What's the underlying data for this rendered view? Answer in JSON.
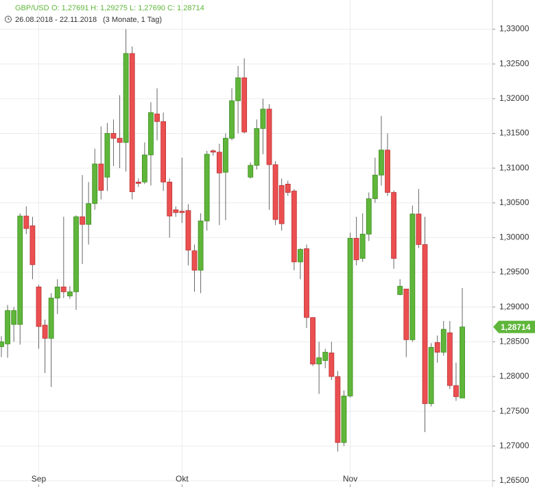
{
  "header": {
    "symbol": "GBP/USD",
    "ohlc": [
      "O: 1,27691",
      "H: 1,29275",
      "L: 1,27690",
      "C: 1,28714"
    ],
    "range": "26.08.2018 - 22.11.2018",
    "span": "(3 Monate, 1 Tag)"
  },
  "chart_data": {
    "type": "candlestick",
    "categories": [
      null,
      null,
      null,
      null,
      null,
      null,
      "Sep",
      null,
      null,
      null,
      null,
      null,
      null,
      null,
      null,
      null,
      null,
      null,
      null,
      null,
      null,
      null,
      null,
      null,
      null,
      null,
      null,
      null,
      null,
      "Okt",
      null,
      null,
      null,
      null,
      null,
      null,
      null,
      null,
      null,
      null,
      null,
      null,
      null,
      null,
      null,
      null,
      null,
      null,
      null,
      null,
      null,
      null,
      null,
      null,
      null,
      null,
      "Nov",
      null,
      null,
      null,
      null,
      null,
      null,
      null,
      null,
      null,
      null,
      null,
      null,
      null,
      null,
      null,
      null,
      null,
      null
    ],
    "open": [
      1.2843,
      1.2847,
      1.2875,
      1.2875,
      1.3031,
      1.3017,
      1.2929,
      1.2874,
      1.2855,
      1.2913,
      1.2929,
      1.2916,
      1.2922,
      1.303,
      1.3019,
      1.3049,
      1.3106,
      1.3087,
      1.315,
      1.3143,
      1.3137,
      1.3265,
      1.308,
      1.308,
      1.3119,
      1.3178,
      1.3167,
      1.308,
      1.304,
      1.3038,
      1.3039,
      1.2981,
      1.2953,
      1.3024,
      1.3125,
      1.3123,
      1.3094,
      1.3143,
      1.3197,
      1.323,
      1.3087,
      1.3104,
      1.3157,
      1.3185,
      1.3105,
      1.3075,
      1.3077,
      1.3067,
      1.2965,
      1.2984,
      1.2885,
      1.2818,
      1.2823,
      1.2834,
      1.28,
      1.2705,
      1.2772,
      1.2999,
      1.297,
      1.3005,
      1.3056,
      1.309,
      1.3126,
      1.3065,
      1.2918,
      1.2926,
      1.2853,
      1.3034,
      1.299,
      1.2761,
      1.2849,
      1.2835,
      1.2863,
      1.2787,
      1.27691
    ],
    "high": [
      1.2858,
      1.2903,
      1.29,
      1.3035,
      1.3045,
      1.303,
      1.2932,
      1.2882,
      1.292,
      1.294,
      1.303,
      1.293,
      1.3032,
      1.309,
      1.308,
      1.3128,
      1.316,
      1.3165,
      1.317,
      1.3205,
      1.33,
      1.3275,
      1.3085,
      1.3137,
      1.3195,
      1.3215,
      1.318,
      1.3085,
      1.3045,
      1.3115,
      1.3048,
      1.299,
      1.3035,
      1.3125,
      1.3127,
      1.3135,
      1.315,
      1.3215,
      1.3247,
      1.3258,
      1.3108,
      1.317,
      1.32,
      1.3192,
      1.311,
      1.3085,
      1.3082,
      1.307,
      1.2985,
      1.299,
      1.2885,
      1.285,
      1.284,
      1.285,
      1.2808,
      1.278,
      1.3007,
      1.303,
      1.3035,
      1.3065,
      1.3115,
      1.3175,
      1.315,
      1.3068,
      1.294,
      1.2926,
      1.3046,
      1.307,
      1.303,
      1.2848,
      1.2859,
      1.288,
      1.288,
      1.282,
      1.29275
    ],
    "low": [
      1.2828,
      1.2827,
      1.285,
      1.2846,
      1.3005,
      1.294,
      1.284,
      1.2805,
      1.2785,
      1.289,
      1.2913,
      1.2912,
      1.2896,
      1.2962,
      1.299,
      1.304,
      1.3055,
      1.3067,
      1.3103,
      1.31,
      1.3095,
      1.3055,
      1.3073,
      1.3077,
      1.3075,
      1.314,
      1.3067,
      1.3,
      1.303,
      1.3021,
      1.296,
      1.2922,
      1.292,
      1.301,
      1.3118,
      1.3018,
      1.3025,
      1.314,
      1.315,
      1.315,
      1.3085,
      1.3098,
      1.312,
      1.304,
      1.3018,
      1.301,
      1.306,
      1.2953,
      1.294,
      1.287,
      1.2815,
      1.2775,
      1.2812,
      1.2795,
      1.2692,
      1.27,
      1.277,
      1.296,
      1.2965,
      1.2995,
      1.305,
      1.3075,
      1.306,
      1.2955,
      1.2917,
      1.2828,
      1.285,
      1.2985,
      1.272,
      1.2757,
      1.282,
      1.283,
      1.2782,
      1.2765,
      1.2769
    ],
    "close": [
      1.285,
      1.2895,
      1.2895,
      1.3031,
      1.3013,
      1.2961,
      1.2872,
      1.2855,
      1.2913,
      1.2929,
      1.2922,
      1.2922,
      1.303,
      1.3019,
      1.3049,
      1.3106,
      1.3068,
      1.315,
      1.3143,
      1.3137,
      1.3265,
      1.3066,
      1.3078,
      1.3119,
      1.318,
      1.3167,
      1.308,
      1.3031,
      1.3036,
      1.3036,
      1.2982,
      1.2953,
      1.3024,
      1.312,
      1.3123,
      1.3093,
      1.3143,
      1.3197,
      1.323,
      1.3152,
      1.3104,
      1.3157,
      1.3185,
      1.3105,
      1.3026,
      1.302,
      1.3065,
      1.2965,
      1.2983,
      1.2885,
      1.2818,
      1.2827,
      1.2835,
      1.28,
      1.2705,
      1.2772,
      1.2999,
      1.2968,
      1.3005,
      1.3056,
      1.309,
      1.3126,
      1.3065,
      1.297,
      1.293,
      1.2853,
      1.3034,
      1.299,
      1.2761,
      1.2842,
      1.2835,
      1.2868,
      1.2787,
      1.2771,
      1.28714
    ],
    "up_color": "#5fb63a",
    "down_color": "#ec4f50",
    "ylim": [
      1.2641,
      1.3342
    ],
    "yticks": [
      {
        "value": 1.33,
        "label": "1,33000"
      },
      {
        "value": 1.325,
        "label": "1,32500"
      },
      {
        "value": 1.32,
        "label": "1,32000"
      },
      {
        "value": 1.315,
        "label": "1,31500"
      },
      {
        "value": 1.31,
        "label": "1,31000"
      },
      {
        "value": 1.305,
        "label": "1,30500"
      },
      {
        "value": 1.3,
        "label": "1,30000"
      },
      {
        "value": 1.295,
        "label": "1,29500"
      },
      {
        "value": 1.29,
        "label": "1,29000"
      },
      {
        "value": 1.285,
        "label": "1,28500"
      },
      {
        "value": 1.28,
        "label": "1,28000"
      },
      {
        "value": 1.275,
        "label": "1,27500"
      },
      {
        "value": 1.27,
        "label": "1,27000"
      },
      {
        "value": 1.265,
        "label": "1,26500"
      }
    ],
    "price_tag": {
      "value": 1.28714,
      "label": "1,28714"
    },
    "grid": true
  }
}
